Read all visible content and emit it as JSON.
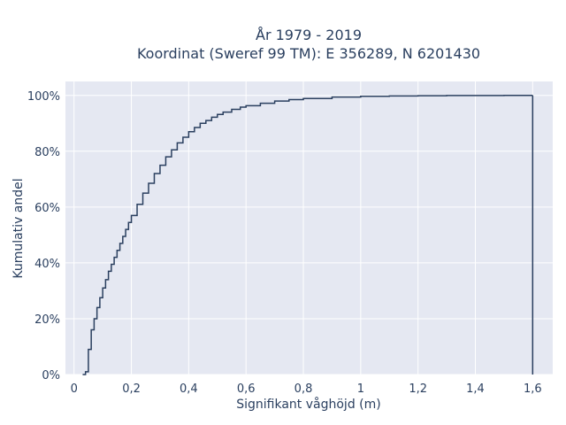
{
  "chart_data": {
    "type": "line",
    "line_shape": "step",
    "title_line1": "År 1979 - 2019",
    "title_line2": "Koordinat (Sweref 99 TM): E 356289, N 6201430",
    "xlabel": "Signifikant våghöjd (m)",
    "ylabel": "Kumulativ andel",
    "xlim": [
      -0.03,
      1.67
    ],
    "ylim": [
      0,
      1.05
    ],
    "x_ticks": [
      0,
      0.2,
      0.4,
      0.6,
      0.8,
      1.0,
      1.2,
      1.4,
      1.6
    ],
    "x_tick_labels": [
      "0",
      "0,2",
      "0,4",
      "0,6",
      "0,8",
      "1",
      "1,2",
      "1,4",
      "1,6"
    ],
    "y_ticks": [
      0,
      0.2,
      0.4,
      0.6,
      0.8,
      1.0
    ],
    "y_tick_labels": [
      "0%",
      "20%",
      "40%",
      "60%",
      "80%",
      "100%"
    ],
    "grid": true,
    "legend": "none",
    "colors": {
      "plot_bg": "#e5e8f2",
      "grid": "#ffffff",
      "line": "#2a3f5f",
      "text": "#2a3f5f"
    },
    "series": [
      {
        "x": [
          0.03,
          0.04,
          0.05,
          0.06,
          0.07,
          0.08,
          0.09,
          0.1,
          0.11,
          0.12,
          0.13,
          0.14,
          0.15,
          0.16,
          0.17,
          0.18,
          0.19,
          0.2,
          0.22,
          0.24,
          0.26,
          0.28,
          0.3,
          0.32,
          0.34,
          0.36,
          0.38,
          0.4,
          0.42,
          0.44,
          0.46,
          0.48,
          0.5,
          0.52,
          0.55,
          0.58,
          0.6,
          0.65,
          0.7,
          0.75,
          0.8,
          0.9,
          1.0,
          1.1,
          1.2,
          1.3,
          1.4,
          1.5,
          1.6
        ],
        "y": [
          0.0,
          0.01,
          0.09,
          0.16,
          0.2,
          0.24,
          0.275,
          0.31,
          0.34,
          0.37,
          0.395,
          0.42,
          0.445,
          0.47,
          0.495,
          0.52,
          0.545,
          0.57,
          0.61,
          0.65,
          0.685,
          0.72,
          0.75,
          0.78,
          0.805,
          0.83,
          0.85,
          0.87,
          0.885,
          0.9,
          0.91,
          0.922,
          0.932,
          0.94,
          0.95,
          0.958,
          0.963,
          0.972,
          0.98,
          0.985,
          0.989,
          0.994,
          0.997,
          0.998,
          0.999,
          0.9995,
          0.9998,
          0.9999,
          1.0
        ]
      }
    ]
  }
}
